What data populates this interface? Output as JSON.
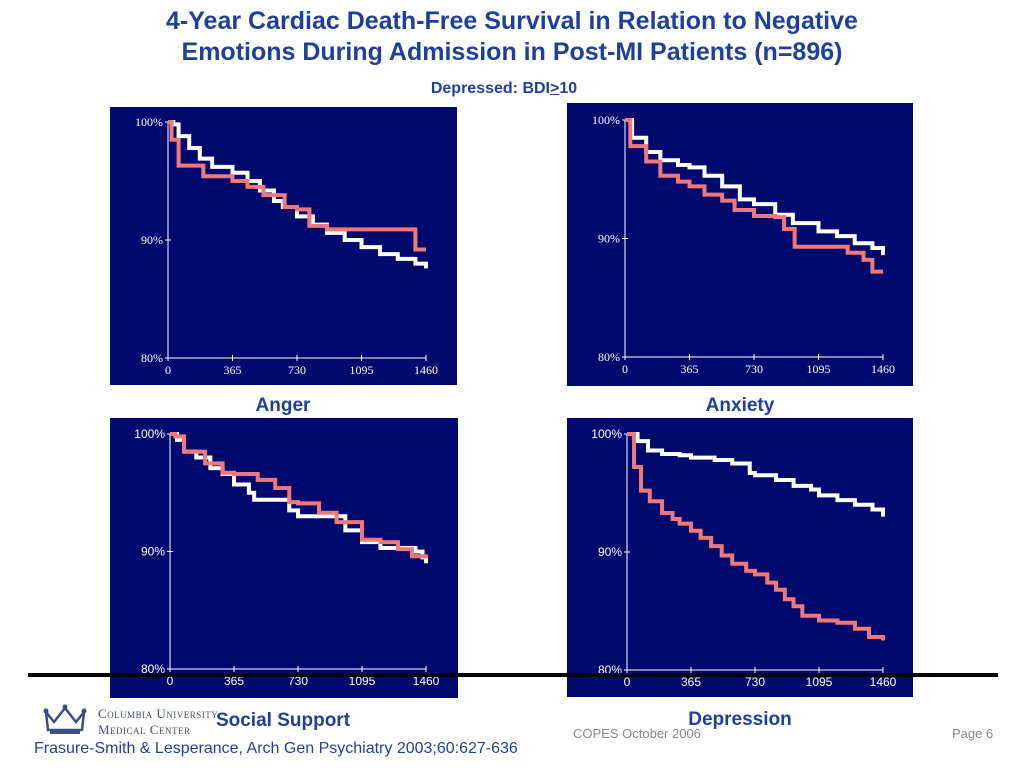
{
  "title_line1": "4-Year Cardiac Death-Free Survival in Relation to Negative",
  "title_line2": "Emotions During Admission in Post-MI Patients (n=896)",
  "subtitle_prefix": "Depressed: BDI",
  "subtitle_ge": ">",
  "subtitle_suffix": "10",
  "logo_line1": "Columbia University",
  "logo_line2": "Medical Center",
  "footer_center": "COPES October 2006",
  "footer_page": "Page 6",
  "citation": "Frasure-Smith & Lesperance, Arch Gen Psychiatry 2003;60:627-636",
  "colors": {
    "panel_bg": "#000a6e",
    "curve_high": "#ffffff",
    "curve_low": "#f07878",
    "text_blue": "#1f3f9f"
  },
  "chart_data": [
    {
      "type": "line",
      "title": "Anger",
      "xlabel": "",
      "ylabel": "",
      "xlim": [
        0,
        1460
      ],
      "ylim": [
        80,
        100
      ],
      "x_ticks": [
        "0",
        "365",
        "730",
        "1095",
        "1460"
      ],
      "y_ticks": [
        "100%",
        "90%",
        "80%"
      ],
      "series": [
        {
          "color": "#ffffff",
          "points": [
            [
              0,
              100
            ],
            [
              30,
              99.8
            ],
            [
              60,
              98.8
            ],
            [
              120,
              97.8
            ],
            [
              180,
              96.9
            ],
            [
              250,
              96.2
            ],
            [
              365,
              95.7
            ],
            [
              450,
              95.0
            ],
            [
              520,
              94.2
            ],
            [
              600,
              93.3
            ],
            [
              650,
              92.8
            ],
            [
              730,
              92.0
            ],
            [
              820,
              91.3
            ],
            [
              900,
              90.6
            ],
            [
              1000,
              90.0
            ],
            [
              1095,
              89.4
            ],
            [
              1200,
              88.8
            ],
            [
              1300,
              88.4
            ],
            [
              1400,
              88.0
            ],
            [
              1460,
              87.6
            ]
          ]
        },
        {
          "color": "#f07878",
          "points": [
            [
              0,
              100
            ],
            [
              20,
              98.5
            ],
            [
              60,
              96.3
            ],
            [
              200,
              95.4
            ],
            [
              365,
              95.0
            ],
            [
              450,
              94.5
            ],
            [
              540,
              93.8
            ],
            [
              660,
              92.8
            ],
            [
              730,
              92.6
            ],
            [
              800,
              91.2
            ],
            [
              900,
              90.9
            ],
            [
              1095,
              90.9
            ],
            [
              1350,
              90.9
            ],
            [
              1400,
              89.2
            ],
            [
              1460,
              89.2
            ]
          ]
        }
      ]
    },
    {
      "type": "line",
      "title": "Anxiety",
      "xlabel": "",
      "ylabel": "",
      "xlim": [
        0,
        1460
      ],
      "ylim": [
        80,
        100
      ],
      "x_ticks": [
        "0",
        "365",
        "730",
        "1095",
        "1460"
      ],
      "y_ticks": [
        "100%",
        "90%",
        "80%"
      ],
      "series": [
        {
          "color": "#ffffff",
          "points": [
            [
              0,
              100
            ],
            [
              40,
              98.5
            ],
            [
              120,
              97.3
            ],
            [
              200,
              96.6
            ],
            [
              300,
              96.2
            ],
            [
              365,
              96.0
            ],
            [
              450,
              95.3
            ],
            [
              550,
              94.4
            ],
            [
              650,
              93.3
            ],
            [
              730,
              92.9
            ],
            [
              850,
              92.0
            ],
            [
              950,
              91.3
            ],
            [
              1095,
              90.6
            ],
            [
              1200,
              90.2
            ],
            [
              1300,
              89.6
            ],
            [
              1400,
              89.2
            ],
            [
              1460,
              88.6
            ]
          ]
        },
        {
          "color": "#f07878",
          "points": [
            [
              0,
              100
            ],
            [
              30,
              97.8
            ],
            [
              120,
              96.5
            ],
            [
              200,
              95.3
            ],
            [
              300,
              94.8
            ],
            [
              365,
              94.4
            ],
            [
              450,
              93.7
            ],
            [
              550,
              93.2
            ],
            [
              620,
              92.4
            ],
            [
              730,
              91.9
            ],
            [
              850,
              91.8
            ],
            [
              900,
              90.8
            ],
            [
              960,
              89.3
            ],
            [
              1095,
              89.3
            ],
            [
              1200,
              89.3
            ],
            [
              1260,
              88.8
            ],
            [
              1350,
              88.2
            ],
            [
              1400,
              87.2
            ],
            [
              1460,
              87.2
            ]
          ]
        }
      ]
    },
    {
      "type": "line",
      "title": "Social Support",
      "xlabel": "",
      "ylabel": "",
      "xlim": [
        0,
        1460
      ],
      "ylim": [
        80,
        100
      ],
      "x_ticks": [
        "0",
        "365",
        "730",
        "1095",
        "1460"
      ],
      "y_ticks": [
        "100%",
        "90%",
        "80%"
      ],
      "series": [
        {
          "color": "#ffffff",
          "points": [
            [
              0,
              100
            ],
            [
              40,
              99.5
            ],
            [
              80,
              98.5
            ],
            [
              150,
              98.0
            ],
            [
              230,
              97.1
            ],
            [
              300,
              96.6
            ],
            [
              365,
              95.7
            ],
            [
              450,
              95.0
            ],
            [
              480,
              94.4
            ],
            [
              600,
              94.4
            ],
            [
              680,
              93.5
            ],
            [
              730,
              93.0
            ],
            [
              850,
              93.0
            ],
            [
              1000,
              91.8
            ],
            [
              1095,
              90.8
            ],
            [
              1200,
              90.3
            ],
            [
              1300,
              90.3
            ],
            [
              1400,
              90.0
            ],
            [
              1440,
              89.5
            ],
            [
              1460,
              89.0
            ]
          ]
        },
        {
          "color": "#f07878",
          "points": [
            [
              0,
              100
            ],
            [
              30,
              99.8
            ],
            [
              80,
              98.5
            ],
            [
              200,
              97.5
            ],
            [
              300,
              96.7
            ],
            [
              365,
              96.6
            ],
            [
              420,
              96.6
            ],
            [
              500,
              96.1
            ],
            [
              600,
              95.4
            ],
            [
              680,
              94.2
            ],
            [
              730,
              94.1
            ],
            [
              850,
              93.3
            ],
            [
              950,
              92.5
            ],
            [
              1095,
              91.0
            ],
            [
              1200,
              90.8
            ],
            [
              1300,
              90.2
            ],
            [
              1380,
              89.6
            ],
            [
              1460,
              89.4
            ]
          ]
        }
      ]
    },
    {
      "type": "line",
      "title": "Depression",
      "xlabel": "",
      "ylabel": "",
      "xlim": [
        0,
        1460
      ],
      "ylim": [
        80,
        100
      ],
      "x_ticks": [
        "0",
        "365",
        "730",
        "1095",
        "1460"
      ],
      "y_ticks": [
        "100%",
        "90%",
        "80%"
      ],
      "series": [
        {
          "color": "#ffffff",
          "points": [
            [
              0,
              100
            ],
            [
              60,
              99.4
            ],
            [
              120,
              98.6
            ],
            [
              200,
              98.3
            ],
            [
              300,
              98.2
            ],
            [
              365,
              98.0
            ],
            [
              500,
              97.8
            ],
            [
              600,
              97.5
            ],
            [
              700,
              96.7
            ],
            [
              730,
              96.5
            ],
            [
              850,
              96.1
            ],
            [
              950,
              95.6
            ],
            [
              1050,
              95.3
            ],
            [
              1095,
              94.8
            ],
            [
              1200,
              94.4
            ],
            [
              1300,
              94.0
            ],
            [
              1400,
              93.6
            ],
            [
              1460,
              93.0
            ]
          ]
        },
        {
          "color": "#f07878",
          "points": [
            [
              0,
              100
            ],
            [
              40,
              97.2
            ],
            [
              80,
              95.2
            ],
            [
              130,
              94.3
            ],
            [
              200,
              93.3
            ],
            [
              260,
              92.8
            ],
            [
              300,
              92.4
            ],
            [
              365,
              91.8
            ],
            [
              420,
              91.2
            ],
            [
              480,
              90.5
            ],
            [
              540,
              89.7
            ],
            [
              600,
              89.0
            ],
            [
              680,
              88.4
            ],
            [
              730,
              88.1
            ],
            [
              800,
              87.4
            ],
            [
              850,
              86.8
            ],
            [
              900,
              86.0
            ],
            [
              950,
              85.4
            ],
            [
              1000,
              84.6
            ],
            [
              1095,
              84.2
            ],
            [
              1200,
              84.0
            ],
            [
              1300,
              83.5
            ],
            [
              1380,
              82.8
            ],
            [
              1460,
              82.5
            ]
          ]
        }
      ]
    }
  ]
}
